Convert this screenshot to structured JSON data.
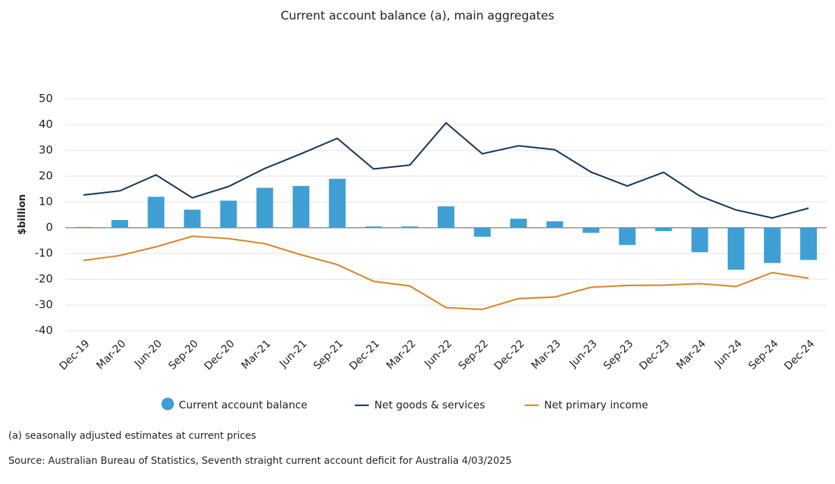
{
  "chart_data": {
    "type": "bar-line",
    "title": "Current account balance (a), main aggregates",
    "y_label": "$billion",
    "categories": [
      "Dec-19",
      "Mar-20",
      "Jun-20",
      "Sep-20",
      "Dec-20",
      "Mar-21",
      "Jun-21",
      "Sep-21",
      "Dec-21",
      "Mar-22",
      "Jun-22",
      "Sep-22",
      "Dec-22",
      "Mar-23",
      "Jun-23",
      "Sep-23",
      "Dec-23",
      "Mar-24",
      "Jun-24",
      "Sep-24",
      "Dec-24"
    ],
    "series": [
      {
        "name": "Current account balance",
        "kind": "bar",
        "color": "#3f9fd4",
        "values": [
          0.3,
          3,
          12,
          7,
          10.5,
          15.5,
          16.2,
          19,
          0.5,
          0.5,
          8.3,
          -3.5,
          3.5,
          2.5,
          -2,
          -6.7,
          -1.3,
          -9.5,
          -16.3,
          -13.7,
          -12.5
        ]
      },
      {
        "name": "Net goods & services",
        "kind": "line",
        "color": "#16395e",
        "values": [
          12.7,
          14.3,
          20.5,
          11.6,
          16,
          23,
          28.7,
          34.7,
          22.8,
          24.3,
          40.7,
          28.7,
          31.8,
          30.3,
          21.6,
          16.2,
          21.5,
          12.3,
          6.9,
          3.8,
          7.6
        ]
      },
      {
        "name": "Net primary income",
        "kind": "line",
        "color": "#d9862a",
        "values": [
          -12.7,
          -10.8,
          -7.4,
          -3.3,
          -4.2,
          -6.2,
          -10.5,
          -14.3,
          -20.8,
          -22.6,
          -31,
          -31.7,
          -27.5,
          -26.9,
          -23.1,
          -22.4,
          -22.3,
          -21.7,
          -22.8,
          -17.4,
          -19.6
        ]
      }
    ],
    "ylim": [
      -40,
      50
    ],
    "yticks": [
      -40,
      -30,
      -20,
      -10,
      0,
      10,
      20,
      30,
      40,
      50
    ],
    "grid": true,
    "notes": [
      "(a) seasonally adjusted estimates at current prices",
      "Source: Australian Bureau of Statistics, Seventh straight current account deficit for Australia 4/03/2025"
    ]
  }
}
